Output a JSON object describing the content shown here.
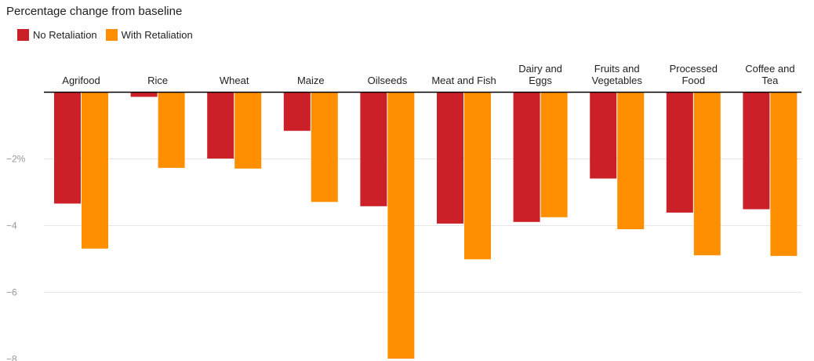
{
  "chart_data": {
    "type": "bar",
    "title": "Percentage change from baseline",
    "xlabel": "",
    "ylabel": "",
    "categories": [
      [
        "Agrifood"
      ],
      [
        "Rice"
      ],
      [
        "Wheat"
      ],
      [
        "Maize"
      ],
      [
        "Oilseeds"
      ],
      [
        "Meat and Fish"
      ],
      [
        "Dairy and",
        "Eggs"
      ],
      [
        "Fruits and",
        "Vegetables"
      ],
      [
        "Processed",
        "Food"
      ],
      [
        "Coffee and",
        "Tea"
      ]
    ],
    "series": [
      {
        "name": "No Retaliation",
        "color": "#cb2027",
        "values": [
          -3.35,
          -0.15,
          -2.0,
          -1.17,
          -3.43,
          -3.95,
          -3.9,
          -2.6,
          -3.62,
          -3.52
        ]
      },
      {
        "name": "With Retaliation",
        "color": "#ff8f00",
        "values": [
          -4.7,
          -2.28,
          -2.3,
          -3.3,
          -8.0,
          -5.02,
          -3.76,
          -4.12,
          -4.9,
          -4.92
        ]
      }
    ],
    "ylim": [
      -8,
      0
    ],
    "yticks": [
      {
        "value": -2,
        "label": "−2%"
      },
      {
        "value": -4,
        "label": "−4"
      },
      {
        "value": -6,
        "label": "−6"
      },
      {
        "value": -8,
        "label": "−8"
      }
    ],
    "grid": true,
    "legend_position": "top-left"
  }
}
